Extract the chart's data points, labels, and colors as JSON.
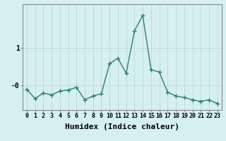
{
  "xlabel": "Humidex (Indice chaleur)",
  "ylabel": "",
  "x_values": [
    0,
    1,
    2,
    3,
    4,
    5,
    6,
    7,
    8,
    9,
    10,
    11,
    12,
    13,
    14,
    15,
    16,
    17,
    18,
    19,
    20,
    21,
    22,
    23
  ],
  "y_values": [
    -0.1,
    -0.35,
    -0.2,
    -0.25,
    -0.15,
    -0.12,
    -0.05,
    -0.38,
    -0.28,
    -0.22,
    0.58,
    0.72,
    0.32,
    1.45,
    1.85,
    0.42,
    0.35,
    -0.18,
    -0.28,
    -0.32,
    -0.38,
    -0.42,
    -0.38,
    -0.48
  ],
  "line_color": "#2e7d6e",
  "marker": "+",
  "marker_size": 4,
  "bg_color": "#d6f0f0",
  "grid_color": "#b8d8d8",
  "axis_color": "#888888",
  "ylim": [
    -0.65,
    2.15
  ],
  "xlim": [
    -0.5,
    23.5
  ],
  "linewidth": 1.0,
  "label_fontsize": 7,
  "tick_fontsize": 6
}
